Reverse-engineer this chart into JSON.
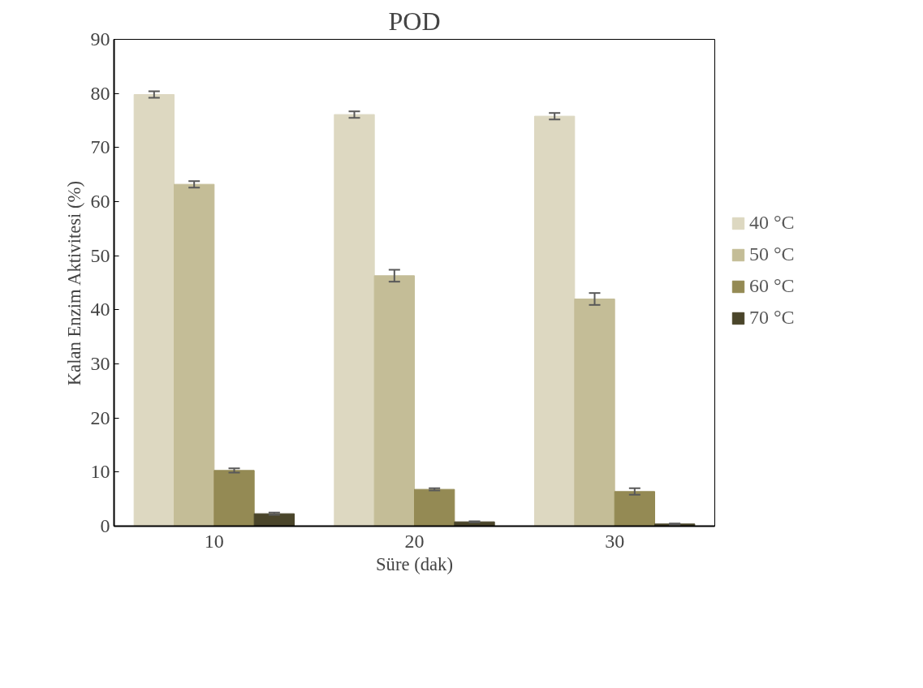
{
  "chart_data": {
    "type": "bar",
    "title": "POD",
    "xlabel": "Süre (dak)",
    "ylabel": "Kalan Enzim Aktivitesi (%)",
    "categories": [
      "10",
      "20",
      "30"
    ],
    "series": [
      {
        "name": "40 °C",
        "color": "#ddd8c1",
        "values": [
          79.8,
          76.1,
          75.8
        ],
        "errors": [
          0.6,
          0.6,
          0.6
        ]
      },
      {
        "name": "50 °C",
        "color": "#c4bd97",
        "values": [
          63.2,
          46.3,
          42.0
        ],
        "errors": [
          0.6,
          1.1,
          1.1
        ]
      },
      {
        "name": "60 °C",
        "color": "#948a54",
        "values": [
          10.3,
          6.8,
          6.4
        ],
        "errors": [
          0.4,
          0.2,
          0.6
        ]
      },
      {
        "name": "70 °C",
        "color": "#4a452a",
        "values": [
          2.3,
          0.8,
          0.4
        ],
        "errors": [
          0.2,
          0.1,
          0.1
        ]
      }
    ],
    "ylim": [
      0,
      90
    ],
    "yticks": [
      0,
      10,
      20,
      30,
      40,
      50,
      60,
      70,
      80,
      90
    ],
    "grid": false,
    "legend": "right"
  }
}
